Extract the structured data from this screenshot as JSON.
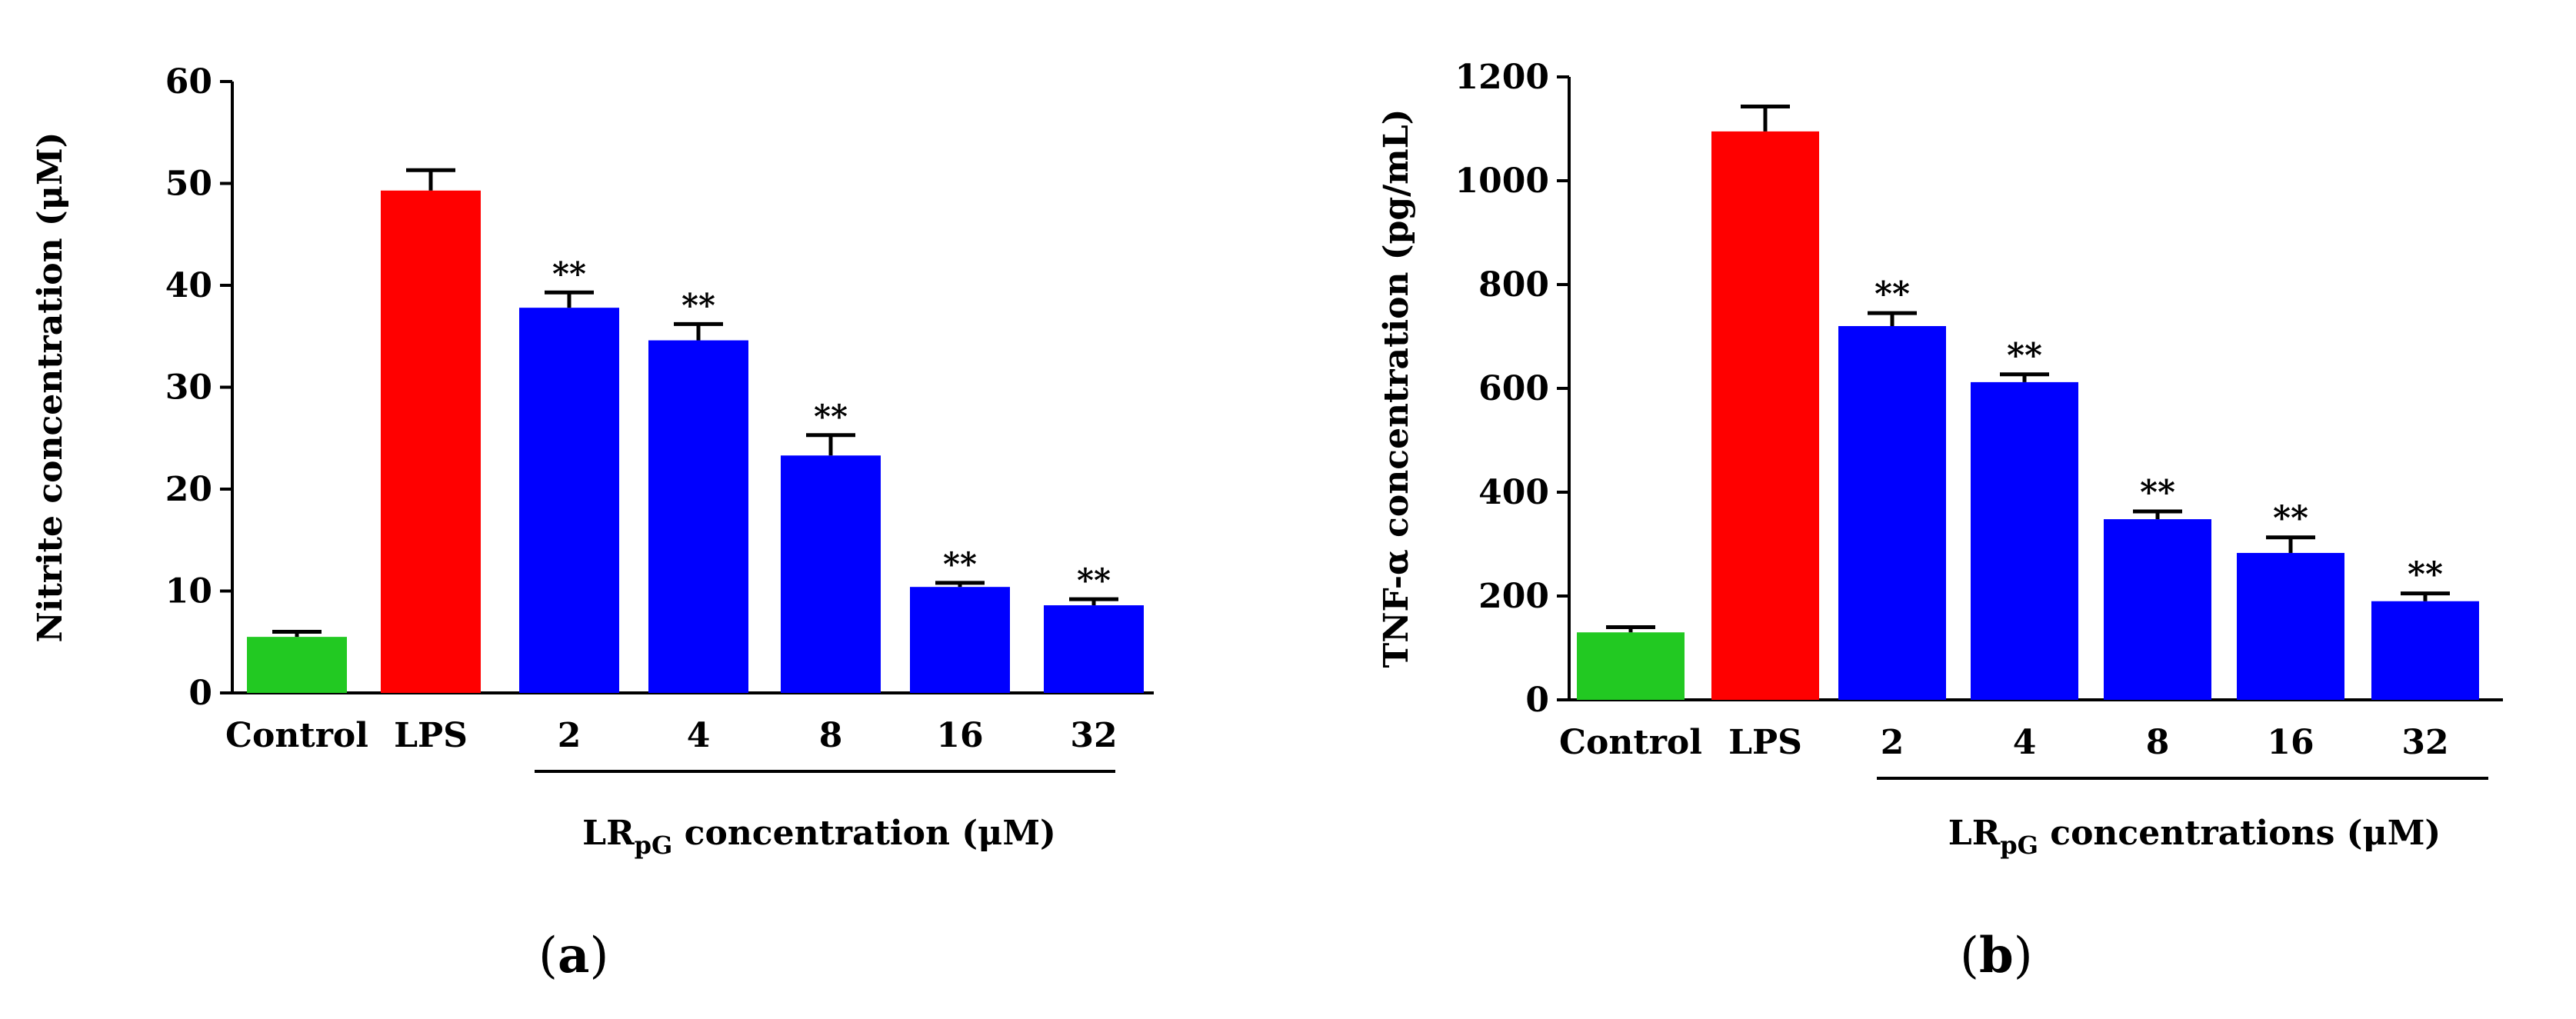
{
  "chart_data": [
    {
      "panel": "a",
      "type": "bar",
      "ylabel": "Nitrite concentration (μM)",
      "ylim": [
        0,
        60
      ],
      "yticks": [
        0,
        10,
        20,
        30,
        40,
        50,
        60
      ],
      "categories": [
        "Control",
        "LPS",
        "2",
        "4",
        "8",
        "16",
        "32"
      ],
      "values": [
        5.5,
        49.3,
        37.8,
        34.6,
        23.3,
        10.4,
        8.6
      ],
      "errors": [
        0.5,
        2.0,
        1.5,
        1.6,
        2.0,
        0.4,
        0.6
      ],
      "colors": [
        "#22c922",
        "#ff0000",
        "#0000ff",
        "#0000ff",
        "#0000ff",
        "#0000ff",
        "#0000ff"
      ],
      "significance": [
        "",
        "",
        "**",
        "**",
        "**",
        "**",
        "**"
      ],
      "xlabel_main": "LR",
      "xlabel_sub": "pG",
      "xlabel_rest": " concentration (μM)"
    },
    {
      "panel": "b",
      "type": "bar",
      "ylabel": "TNF-α   concentration (pg/mL)",
      "ylim": [
        0,
        1200
      ],
      "yticks": [
        0,
        200,
        400,
        600,
        800,
        1000,
        1200
      ],
      "categories": [
        "Control",
        "LPS",
        "2",
        "4",
        "8",
        "16",
        "32"
      ],
      "values": [
        130,
        1095,
        720,
        612,
        348,
        283,
        190
      ],
      "errors": [
        10,
        48,
        25,
        15,
        15,
        30,
        15
      ],
      "colors": [
        "#22c922",
        "#ff0000",
        "#0000ff",
        "#0000ff",
        "#0000ff",
        "#0000ff",
        "#0000ff"
      ],
      "significance": [
        "",
        "",
        "**",
        "**",
        "**",
        "**",
        "**"
      ],
      "xlabel_main": "LR",
      "xlabel_sub": "pG",
      "xlabel_rest": " concentrations  (μM)"
    }
  ],
  "panel_labels": {
    "a": "a",
    "b": "b"
  }
}
